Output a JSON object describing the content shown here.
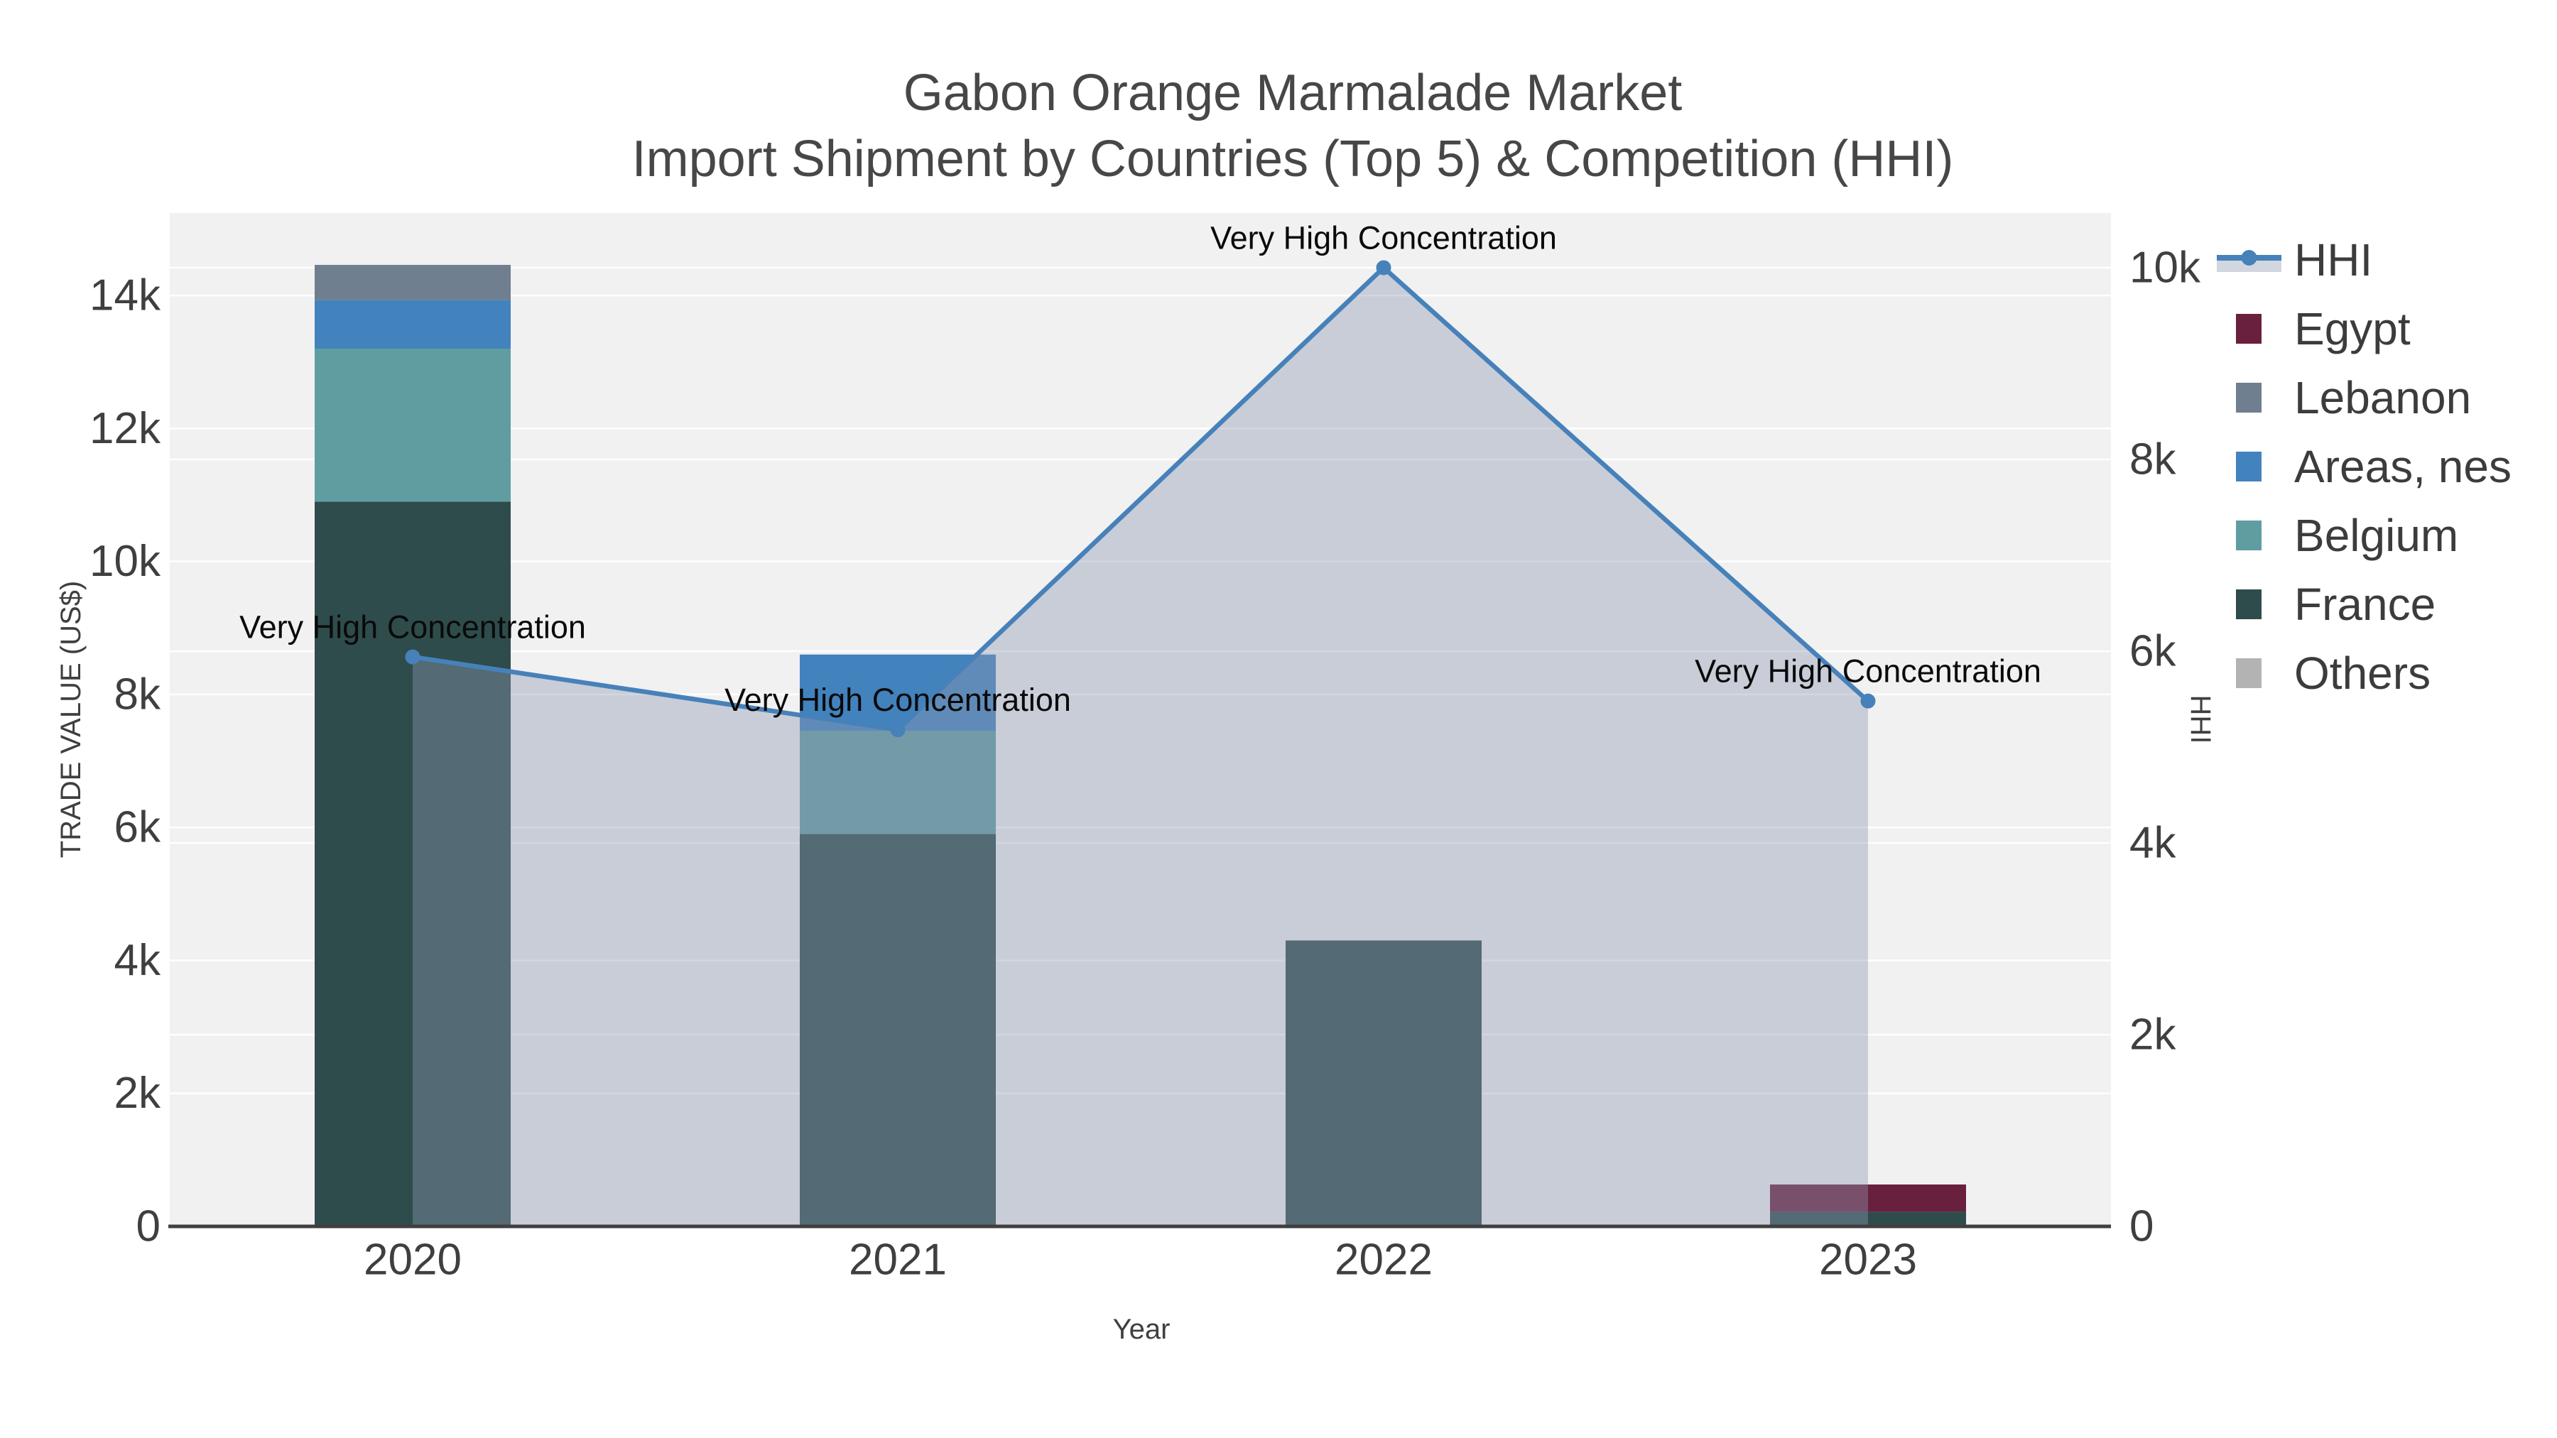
{
  "title": {
    "line1": "Gabon Orange Marmalade Market",
    "line2": "Import Shipment by Countries (Top 5) & Competition (HHI)"
  },
  "chart_data": {
    "type": "combo: stacked bar (left axis) + line with area fill (right axis)",
    "categories": [
      "2020",
      "2021",
      "2022",
      "2023"
    ],
    "bar_series": [
      {
        "name": "France",
        "color": "#2E4C4B",
        "values": [
          10900,
          5900,
          4300,
          220
        ]
      },
      {
        "name": "Belgium",
        "color": "#5F9DA1",
        "values": [
          2300,
          1550,
          0,
          0
        ]
      },
      {
        "name": "Areas, nes",
        "color": "#4282BD",
        "values": [
          730,
          1150,
          0,
          0
        ]
      },
      {
        "name": "Lebanon",
        "color": "#6F7F8F",
        "values": [
          530,
          0,
          0,
          0
        ]
      },
      {
        "name": "Egypt",
        "color": "#69203F",
        "values": [
          0,
          0,
          0,
          410
        ]
      },
      {
        "name": "Others",
        "color": "#B3B3B3",
        "values": [
          0,
          0,
          0,
          0
        ]
      }
    ],
    "line_series": {
      "name": "HHI",
      "color": "#4781BA",
      "area_fill": "rgba(143,153,177,0.40)",
      "values": [
        5940,
        5180,
        10000,
        5480
      ]
    },
    "annotations": [
      {
        "text": "Very High Concentration",
        "category": "2020"
      },
      {
        "text": "Very High Concentration",
        "category": "2021"
      },
      {
        "text": "Very High Concentration",
        "category": "2022"
      },
      {
        "text": "Very High Concentration",
        "category": "2023"
      }
    ],
    "x_axis": {
      "title": "Year",
      "tick_labels": [
        "2020",
        "2021",
        "2022",
        "2023"
      ]
    },
    "y_left_axis": {
      "title": "TRADE VALUE (US$)",
      "tick_labels": [
        "0",
        "2k",
        "4k",
        "6k",
        "8k",
        "10k",
        "12k",
        "14k"
      ],
      "tick_values": [
        0,
        2000,
        4000,
        6000,
        8000,
        10000,
        12000,
        14000
      ],
      "range": [
        0,
        15240
      ],
      "grid": true
    },
    "y_right_axis": {
      "title": "HHI",
      "tick_labels": [
        "0",
        "2k",
        "4k",
        "6k",
        "8k",
        "10k"
      ],
      "tick_values": [
        0,
        2000,
        4000,
        6000,
        8000,
        10000
      ],
      "range": [
        0,
        10570
      ],
      "grid": true
    },
    "legend_position": "right"
  },
  "legend": {
    "items": [
      {
        "label": "HHI",
        "type": "line",
        "color": "#4781BA",
        "band_color": "#D2D6DE"
      },
      {
        "label": "Egypt",
        "type": "bar",
        "color": "#69203F"
      },
      {
        "label": "Lebanon",
        "type": "bar",
        "color": "#6F7F8F"
      },
      {
        "label": "Areas, nes",
        "type": "bar",
        "color": "#4282BD"
      },
      {
        "label": "Belgium",
        "type": "bar",
        "color": "#5F9DA1"
      },
      {
        "label": "France",
        "type": "bar",
        "color": "#2E4C4B"
      },
      {
        "label": "Others",
        "type": "bar",
        "color": "#B3B3B3"
      }
    ]
  },
  "colors": {
    "plot_background": "#F1F1F2",
    "gridline": "#FFFFFF",
    "axis_line": "#3F3F3F",
    "tick_text": "#3F3F3F",
    "axis_title_text": "#3F3F3F",
    "annotation_text": "#0A0A0A",
    "legend_text": "#3C3C3C",
    "title_text": "#474747"
  }
}
